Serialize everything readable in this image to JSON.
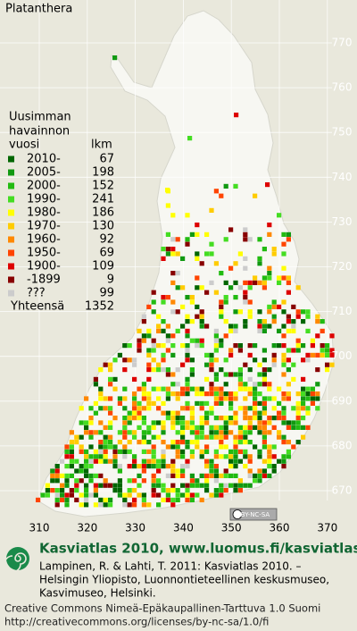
{
  "title": "Platanthera",
  "legend": {
    "heading": [
      "Uusimman",
      "havainnon"
    ],
    "col_year": "vuosi",
    "col_count": "lkm",
    "items": [
      {
        "label": "2010-",
        "count": 67,
        "color": "#006600"
      },
      {
        "label": "2005-",
        "count": 198,
        "color": "#119911"
      },
      {
        "label": "2000-",
        "count": 152,
        "color": "#22bb11"
      },
      {
        "label": "1990-",
        "count": 241,
        "color": "#44dd22"
      },
      {
        "label": "1980-",
        "count": 186,
        "color": "#ffff00"
      },
      {
        "label": "1970-",
        "count": 130,
        "color": "#ffcc00"
      },
      {
        "label": "1960-",
        "count": 92,
        "color": "#ff8800"
      },
      {
        "label": "1950-",
        "count": 69,
        "color": "#ff4400"
      },
      {
        "label": "1900-",
        "count": 109,
        "color": "#dd0000"
      },
      {
        "label": "-1899",
        "count": 9,
        "color": "#880000"
      },
      {
        "label": "???",
        "count": 99,
        "color": "#cccccc"
      }
    ],
    "total_label": "Yhteensä",
    "total": 1352
  },
  "map": {
    "x_labels": [
      310,
      320,
      330,
      340,
      350,
      360,
      370
    ],
    "y_labels": [
      770,
      760,
      750,
      740,
      730,
      720,
      710,
      700,
      690,
      680,
      670
    ]
  },
  "badge": "BY-NC-SA",
  "footer": {
    "atlas": "Kasviatlas 2010, www.luomus.fi/kasviatlas",
    "citation": [
      "Lampinen, R. & Lahti, T. 2011: Kasviatlas 2010. –",
      "Helsingin Yliopisto, Luonnontieteellinen keskusmuseo,",
      "Kasvimuseo, Helsinki."
    ],
    "license": [
      "Creative Commons Nimeä-Epäkaupallinen-Tarttuva 1.0 Suomi",
      "http://creativecommons.org/licenses/by-nc-sa/1.0/fi"
    ]
  }
}
